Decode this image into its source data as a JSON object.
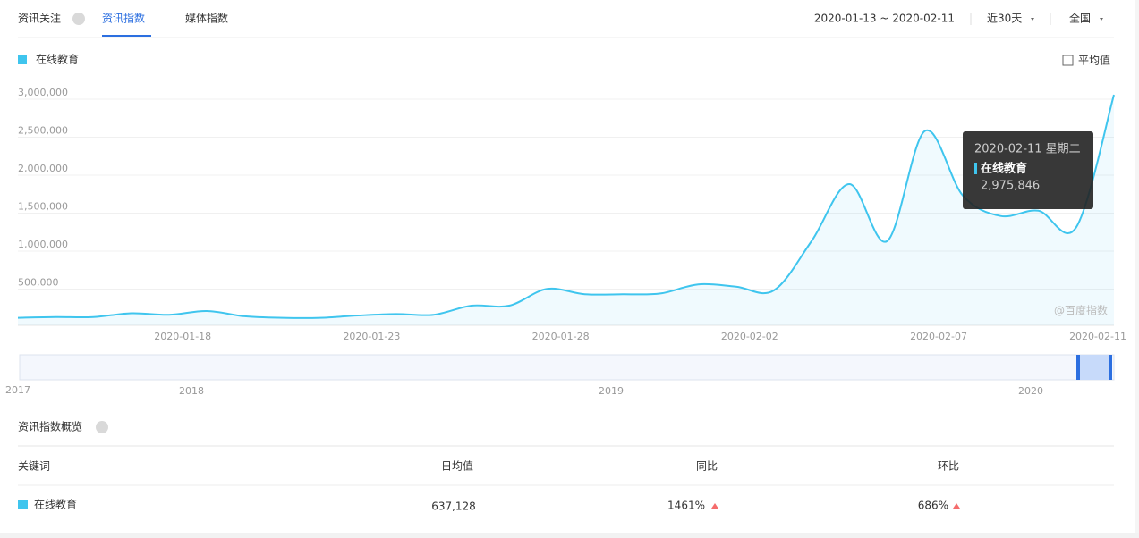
{
  "header": {
    "tabs": [
      "资讯关注",
      "资讯指数",
      "媒体指数"
    ],
    "date_range": "2020-01-13 ~ 2020-02-11",
    "period": "近30天",
    "region": "全国"
  },
  "average_toggle": "平均值",
  "chart_data": {
    "type": "line",
    "categories": [
      null,
      null,
      null,
      null,
      null,
      "2020-01-18",
      null,
      null,
      null,
      null,
      "2020-01-23",
      null,
      null,
      null,
      null,
      "2020-01-28",
      null,
      null,
      null,
      null,
      "2020-02-02",
      null,
      null,
      null,
      null,
      "2020-02-07",
      null,
      null,
      null,
      "2020-02-11"
    ],
    "series": [
      {
        "name": "在线教育",
        "color": "#3fc5ee",
        "values": [
          40000,
          50000,
          50000,
          100000,
          80000,
          130000,
          60000,
          40000,
          40000,
          70000,
          90000,
          80000,
          200000,
          200000,
          420000,
          350000,
          350000,
          360000,
          480000,
          450000,
          400000,
          1050000,
          1800000,
          1050000,
          2500000,
          1650000,
          1380000,
          1450000,
          1230000,
          2975846
        ]
      }
    ],
    "ylim": [
      0,
      3000000
    ],
    "yticks": [
      {
        "value": 500000,
        "label": "500,000"
      },
      {
        "value": 1000000,
        "label": "1,000,000"
      },
      {
        "value": 1500000,
        "label": "1,500,000"
      },
      {
        "value": 2000000,
        "label": "2,000,000"
      },
      {
        "value": 2500000,
        "label": "2,500,000"
      },
      {
        "value": 3000000,
        "label": "3,000,000"
      }
    ],
    "grid": true,
    "watermark": "@百度指数",
    "tooltip": {
      "title": "2020-02-11 星期二",
      "value": "2,975,846"
    }
  },
  "timeline": {
    "years": [
      "2017",
      "2018",
      "2019",
      "2020"
    ]
  },
  "overview": {
    "title": "资讯指数概览",
    "columns": [
      "关键词",
      "日均值",
      "同比",
      "环比"
    ],
    "rows": [
      [
        "在线教育",
        "637,128",
        "1461%",
        "686%"
      ]
    ]
  }
}
